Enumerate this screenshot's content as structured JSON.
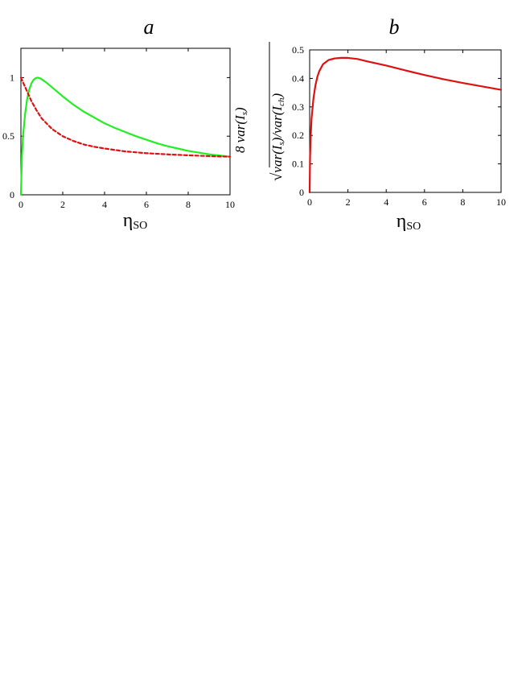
{
  "chart_data": [
    {
      "type": "line",
      "title": "a",
      "xlabel": "η",
      "xlabel_sub": "SO",
      "ylabel_right": "8 var(I_s)",
      "ylabel_right_text": {
        "main": "8 var(I",
        "sub": "s",
        "close": ")"
      },
      "xlim": [
        0,
        10
      ],
      "ylim": [
        0,
        1.25
      ],
      "xticks": [
        0,
        2,
        4,
        6,
        8,
        10
      ],
      "xtick_labels": [
        "0",
        "2",
        "4",
        "6",
        "8",
        "10"
      ],
      "yticks": [
        0,
        0.5,
        1
      ],
      "ytick_labels": [
        "0",
        "0.5",
        "1"
      ],
      "grid": false,
      "series": [
        {
          "color": "#22ee22",
          "dash": "solid",
          "x": [
            0,
            0.05,
            0.1,
            0.2,
            0.3,
            0.4,
            0.5,
            0.6,
            0.7,
            0.8,
            0.9,
            1.0,
            1.2,
            1.4,
            1.6,
            1.8,
            2.0,
            2.5,
            3.0,
            3.5,
            4.0,
            4.5,
            5.0,
            5.5,
            6.0,
            6.5,
            7.0,
            7.5,
            8.0,
            8.5,
            9.0,
            9.5,
            10.0
          ],
          "y": [
            0,
            0.34,
            0.5,
            0.69,
            0.82,
            0.9,
            0.95,
            0.98,
            0.995,
            1.0,
            0.995,
            0.985,
            0.96,
            0.93,
            0.9,
            0.87,
            0.84,
            0.77,
            0.71,
            0.66,
            0.61,
            0.57,
            0.535,
            0.5,
            0.47,
            0.44,
            0.415,
            0.395,
            0.375,
            0.36,
            0.345,
            0.335,
            0.325
          ]
        },
        {
          "color": "#dd1111",
          "dash": "dashed",
          "x": [
            0,
            0.25,
            0.5,
            0.75,
            1.0,
            1.5,
            2.0,
            2.5,
            3.0,
            3.5,
            4.0,
            5.0,
            6.0,
            7.0,
            8.0,
            9.0,
            10.0
          ],
          "y": [
            1.0,
            0.9,
            0.8,
            0.72,
            0.65,
            0.56,
            0.5,
            0.46,
            0.43,
            0.41,
            0.395,
            0.37,
            0.355,
            0.345,
            0.337,
            0.33,
            0.325
          ]
        }
      ]
    },
    {
      "type": "line",
      "title": "b",
      "xlabel": "η",
      "xlabel_sub": "SO",
      "ylabel": "√var(I_s)/var(I_ch)",
      "ylabel_text": {
        "sqrt": "√",
        "main": "var(I",
        "sub1": "s",
        "mid": ")/var(I",
        "sub2": "ch",
        "close": ")"
      },
      "xlim": [
        0,
        10
      ],
      "ylim": [
        0,
        0.5
      ],
      "xticks": [
        0,
        2,
        4,
        6,
        8,
        10
      ],
      "xtick_labels": [
        "0",
        "2",
        "4",
        "6",
        "8",
        "10"
      ],
      "yticks": [
        0,
        0.1,
        0.2,
        0.3,
        0.4,
        0.5
      ],
      "ytick_labels": [
        "0",
        "0.1",
        "0.2",
        "0.3",
        "0.4",
        "0.5"
      ],
      "grid": false,
      "series": [
        {
          "color": "#dd1111",
          "dash": "solid",
          "x": [
            0,
            0.02,
            0.05,
            0.1,
            0.2,
            0.3,
            0.4,
            0.5,
            0.7,
            1.0,
            1.3,
            1.6,
            2.0,
            2.5,
            3.0,
            4.0,
            5.0,
            6.0,
            7.0,
            8.0,
            9.0,
            10.0
          ],
          "y": [
            0,
            0.12,
            0.19,
            0.26,
            0.33,
            0.375,
            0.405,
            0.425,
            0.45,
            0.465,
            0.47,
            0.472,
            0.472,
            0.468,
            0.46,
            0.445,
            0.428,
            0.412,
            0.397,
            0.384,
            0.372,
            0.36
          ]
        }
      ]
    }
  ]
}
